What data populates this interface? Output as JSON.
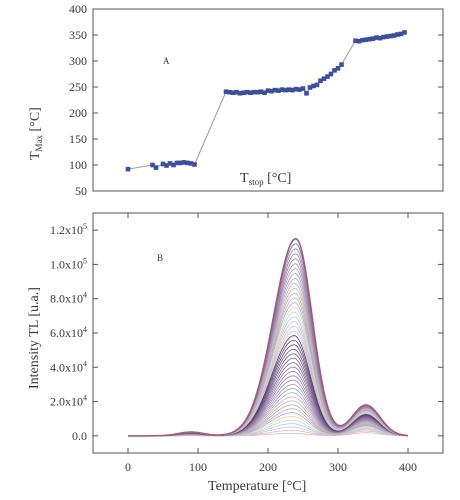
{
  "chart_data": [
    {
      "type": "scatter",
      "panel_label": "A",
      "ylabel": {
        "main": "T",
        "sub": "Max",
        "unit": " [°C]"
      },
      "xlabel": {
        "main": "T",
        "sub": "stop",
        "unit": " [°C]"
      },
      "ylim": [
        50,
        400
      ],
      "yticks": [
        50,
        100,
        150,
        200,
        250,
        300,
        350,
        400
      ],
      "xlim": [
        -50,
        450
      ],
      "colors": {
        "marker": "#3b4f9c",
        "connector": "#9a9a9a"
      },
      "series": [
        {
          "x": [
            0,
            35,
            40,
            50,
            55,
            60,
            65,
            70,
            75,
            80,
            85,
            90,
            95,
            140,
            145,
            150,
            155,
            160,
            165,
            170,
            175,
            180,
            185,
            190,
            195,
            200,
            205,
            210,
            215,
            220,
            225,
            230,
            235,
            240,
            245,
            250,
            255,
            260,
            265,
            270,
            275,
            280,
            285,
            290,
            295,
            300,
            305,
            325,
            330,
            335,
            340,
            345,
            350,
            355,
            360,
            365,
            370,
            375,
            380,
            385,
            390,
            395
          ],
          "y": [
            92,
            100,
            95,
            102,
            99,
            103,
            100,
            104,
            104,
            105,
            104,
            103,
            101,
            241,
            240,
            239,
            240,
            238,
            239,
            240,
            239,
            240,
            240,
            241,
            239,
            243,
            242,
            244,
            243,
            245,
            244,
            245,
            244,
            246,
            245,
            247,
            238,
            249,
            252,
            254,
            262,
            266,
            270,
            275,
            282,
            286,
            293,
            339,
            338,
            340,
            341,
            342,
            343,
            345,
            344,
            346,
            347,
            348,
            349,
            351,
            352,
            355
          ]
        }
      ]
    },
    {
      "type": "line",
      "panel_label": "B",
      "ylabel": "Intensity TL [u.a.]",
      "xlabel": "Temperature [°C]",
      "xlim": [
        -50,
        450
      ],
      "xticks": [
        0,
        100,
        200,
        300,
        400
      ],
      "ylim": [
        -10000,
        130000
      ],
      "yticks": [
        0,
        20000,
        40000,
        60000,
        80000,
        100000,
        120000
      ],
      "ytick_labels": [
        "0.0",
        "2.0x10",
        "4.0x10",
        "6.0x10",
        "8.0x10",
        "1.0x10",
        "1.2x10"
      ],
      "ytick_exps": [
        "",
        "4",
        "4",
        "4",
        "4",
        "5",
        "5"
      ],
      "curve_model": {
        "x_range": [
          0,
          400
        ],
        "main_peak": {
          "center": 240,
          "amplitude_max": 115000,
          "width": 26
        },
        "secondary_peak": {
          "center": 340,
          "amplitude_max": 18000,
          "width": 20
        },
        "low_peak": {
          "center": 90,
          "amplitude_max": 2200,
          "width": 18
        },
        "curve_count": 45
      },
      "colors": [
        "#d9b8c4",
        "#e8b7b0",
        "#c9c0e0",
        "#b6c9e8",
        "#c2dcc4",
        "#e6d5a8",
        "#bda3cf",
        "#9fb7dc",
        "#d49aa8",
        "#a5c7b2",
        "#e2a99a",
        "#b3a7d6",
        "#8fa6d0",
        "#cf8f9d",
        "#7f97c7",
        "#b07aa0",
        "#6f86bf",
        "#c06c7e",
        "#5d74b3",
        "#a05c7a",
        "#4c61a2",
        "#8d4b6e",
        "#404f8c",
        "#7a3f60",
        "#35407a"
      ]
    }
  ]
}
